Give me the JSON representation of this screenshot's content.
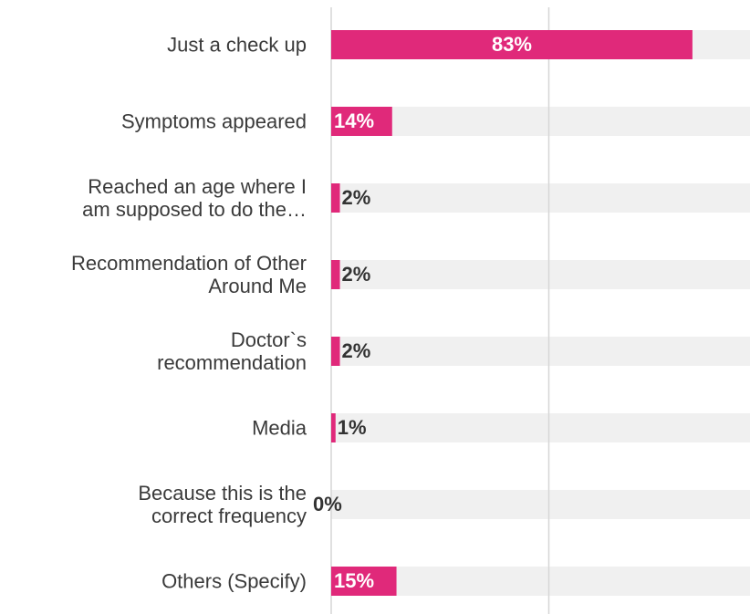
{
  "chart_data": {
    "type": "bar",
    "orientation": "horizontal",
    "categories": [
      "Just a check up",
      "Symptoms appeared",
      "Reached an age where I am supposed to do the…",
      "Recommendation of Other Around Me",
      "Doctor`s recommendation",
      "Media",
      "Because this is the correct frequency",
      "Others (Specify)"
    ],
    "values": [
      83,
      14,
      2,
      2,
      2,
      1,
      0,
      15
    ],
    "value_labels": [
      "83%",
      "14%",
      "2%",
      "2%",
      "2%",
      "1%",
      "0%",
      "15%"
    ],
    "color": "#e0297a",
    "track_color": "#f0f0f0",
    "xlim": [
      0,
      100
    ],
    "xticks": [
      0,
      50,
      100
    ],
    "grid": true
  }
}
